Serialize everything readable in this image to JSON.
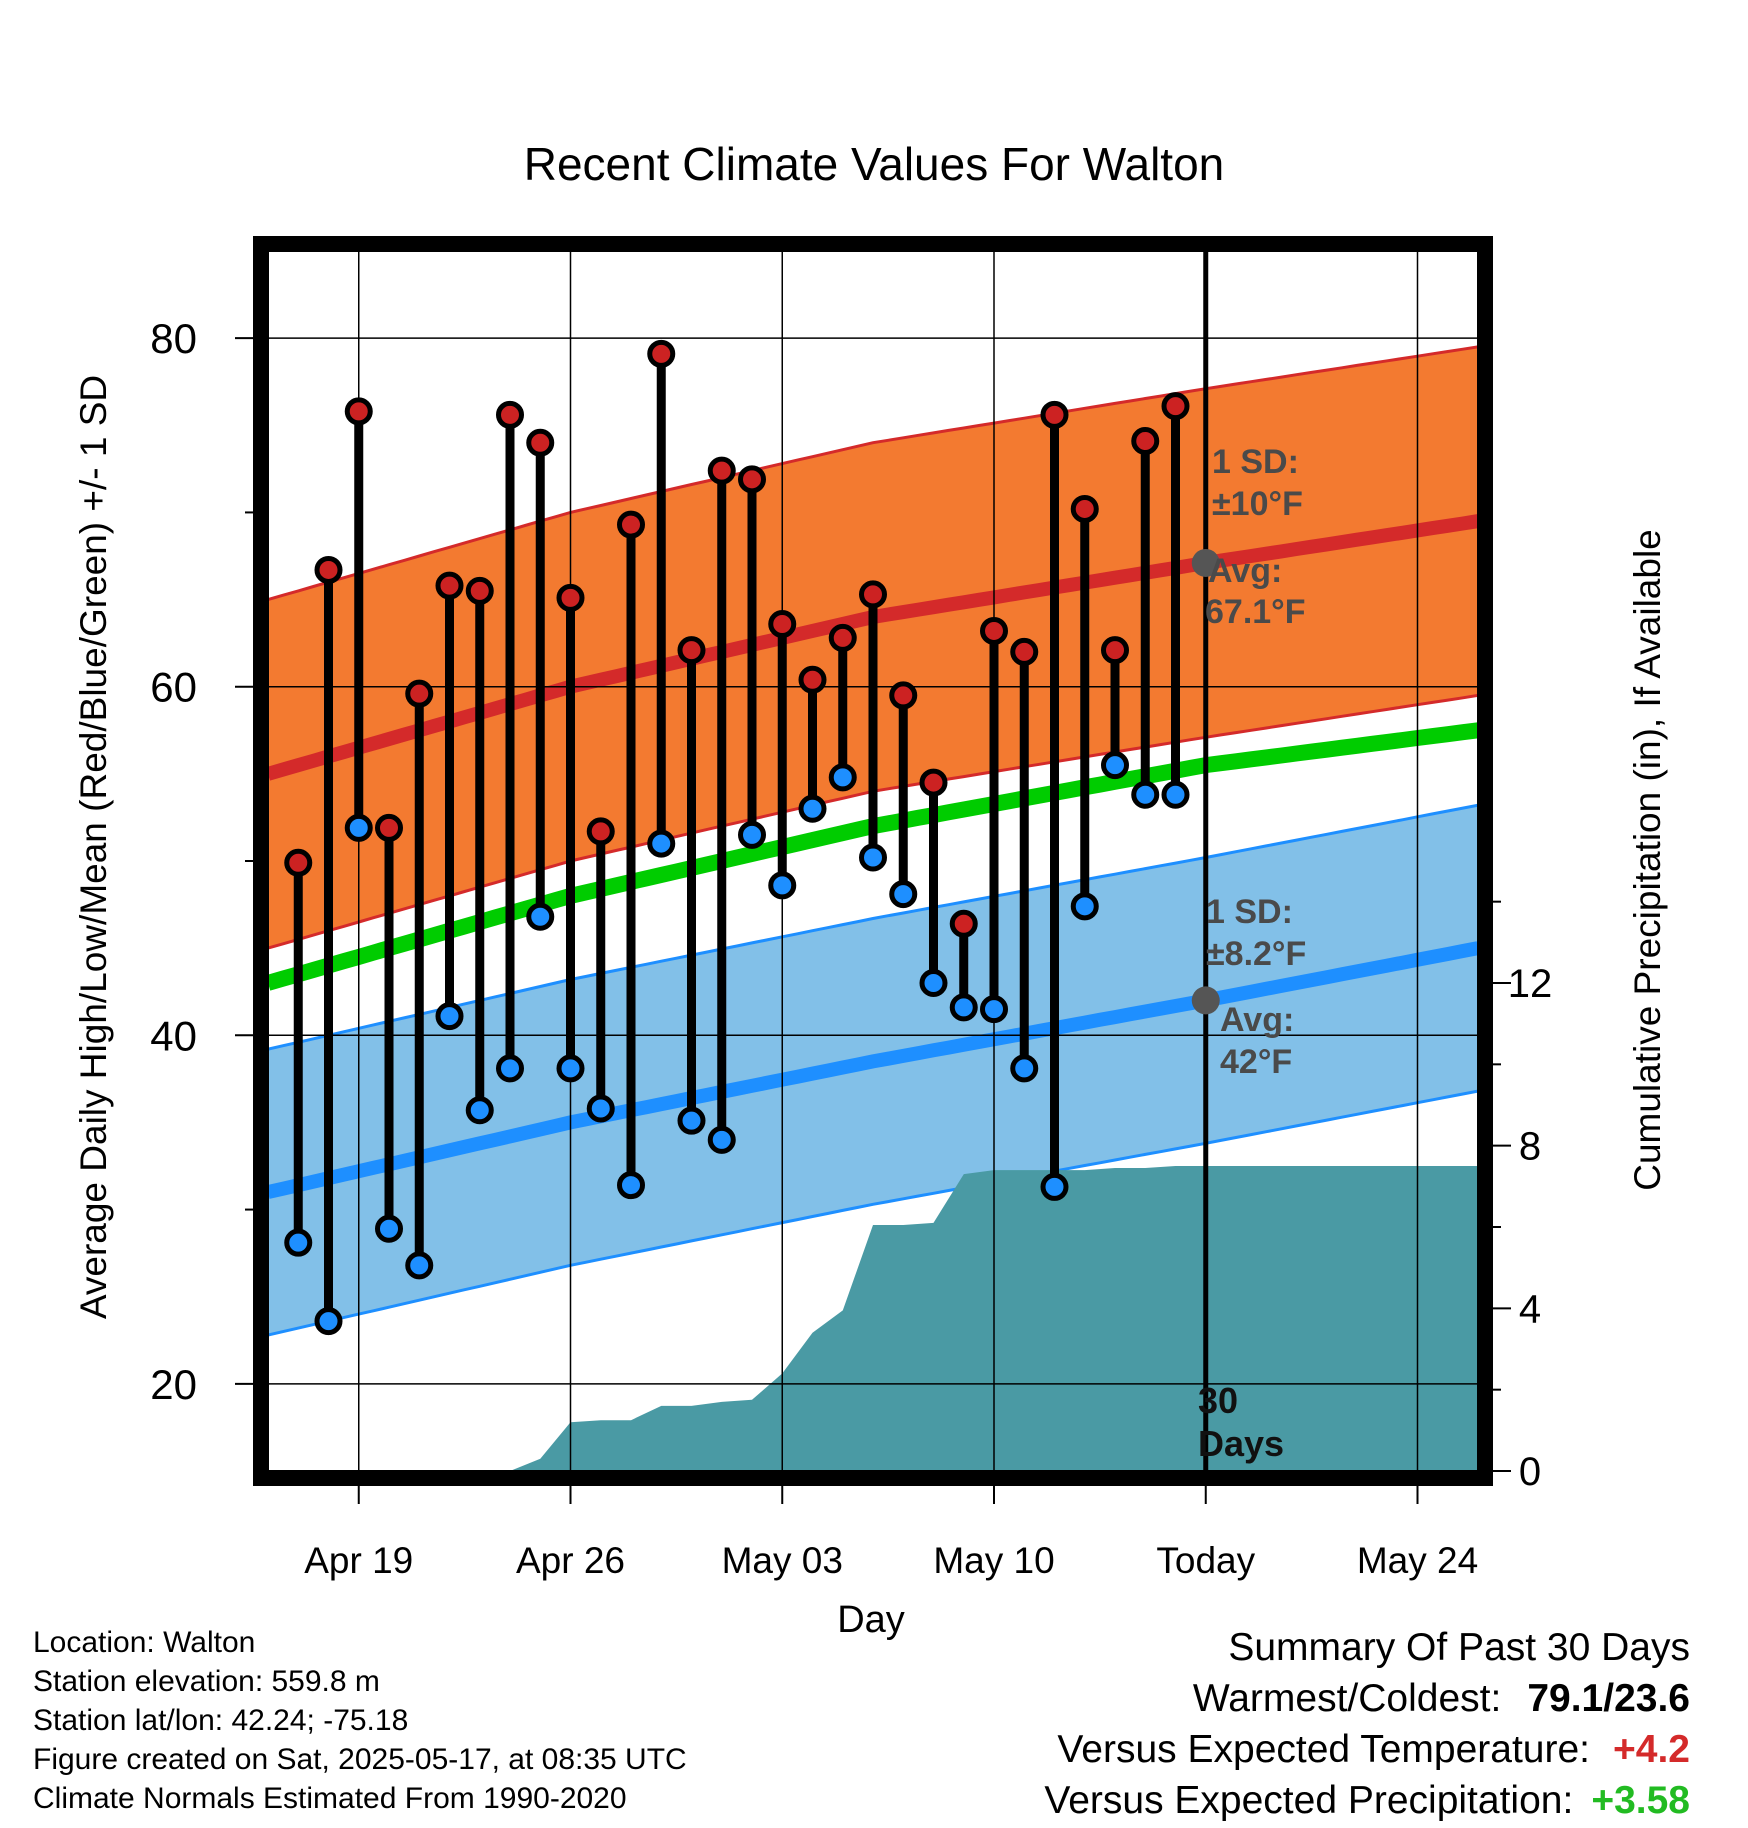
{
  "colors": {
    "high_band": "#f37a30",
    "high_line": "#d42a2a",
    "high_band_edge": "#d42a2a",
    "low_band": "#82c0e8",
    "low_line": "#1e8fff",
    "low_band_edge": "#1e8fff",
    "mean_line": "#00cc00",
    "precip_fill": "#4a9aa4",
    "high_marker": "#cc2222",
    "low_marker": "#1e8fff",
    "annotation_text": "#4a4a4a",
    "positive_temp": "#d42a2a",
    "positive_precip": "#22bb22"
  },
  "chart_data": {
    "type": "line",
    "title": "Recent Climate Values For Walton",
    "xlabel": "Day",
    "ylabel": "Average Daily High/Low/Mean (Red/Blue/Green) +/- 1 SD",
    "y2label": "Cumulative Precipitation (in), If Available",
    "ylim": [
      15,
      85
    ],
    "y2lim": [
      0,
      30
    ],
    "yticks": [
      20,
      40,
      60,
      80
    ],
    "y2ticks": [
      0,
      4,
      8,
      12
    ],
    "xlim": [
      16,
      56
    ],
    "grid": true,
    "xticks": [
      {
        "day": 19,
        "label": "Apr 19"
      },
      {
        "day": 26,
        "label": "Apr 26"
      },
      {
        "day": 33,
        "label": "May 03"
      },
      {
        "day": 40,
        "label": "May 10"
      },
      {
        "day": 47,
        "label": "Today"
      },
      {
        "day": 54,
        "label": "May 24"
      }
    ],
    "today_day": 47,
    "normals": {
      "days": [
        16,
        26,
        36,
        47,
        56
      ],
      "high_mean": [
        55,
        60,
        64,
        67.1,
        69.5
      ],
      "high_sd": 10,
      "low_mean": [
        31,
        35,
        38.5,
        42,
        45
      ],
      "low_sd": 8.2,
      "mean": [
        43,
        48,
        52,
        55.5,
        57.5
      ]
    },
    "series": [
      {
        "name": "High",
        "days": [
          17,
          18,
          19,
          20,
          21,
          22,
          23,
          24,
          25,
          26,
          27,
          28,
          29,
          30,
          31,
          32,
          33,
          34,
          35,
          36,
          37,
          38,
          39,
          40,
          41,
          42,
          43,
          44,
          45,
          46
        ],
        "values": [
          49.9,
          66.7,
          75.8,
          51.9,
          59.6,
          65.8,
          65.5,
          75.6,
          74.0,
          65.1,
          51.7,
          69.3,
          79.1,
          62.1,
          72.4,
          71.9,
          63.6,
          60.4,
          62.8,
          65.3,
          59.5,
          54.5,
          46.4,
          63.2,
          62.0,
          75.6,
          70.2,
          62.1,
          74.1,
          76.1
        ]
      },
      {
        "name": "Low",
        "days": [
          17,
          18,
          19,
          20,
          21,
          22,
          23,
          24,
          25,
          26,
          27,
          28,
          29,
          30,
          31,
          32,
          33,
          34,
          35,
          36,
          37,
          38,
          39,
          40,
          41,
          42,
          43,
          44,
          45,
          46
        ],
        "values": [
          28.1,
          23.6,
          51.9,
          28.9,
          26.8,
          41.1,
          35.7,
          38.1,
          46.8,
          38.1,
          35.8,
          31.4,
          51.0,
          35.1,
          34.0,
          51.5,
          48.6,
          53.0,
          54.8,
          50.2,
          48.1,
          43.0,
          41.6,
          41.5,
          38.1,
          31.3,
          47.4,
          55.5,
          53.8,
          53.8
        ]
      }
    ],
    "precipitation": {
      "days": [
        16,
        17,
        18,
        19,
        20,
        21,
        22,
        23,
        24,
        25,
        26,
        27,
        28,
        29,
        30,
        31,
        32,
        33,
        34,
        35,
        36,
        37,
        38,
        39,
        40,
        41,
        42,
        43,
        44,
        45,
        46,
        47,
        56
      ],
      "values": [
        0,
        0,
        0,
        0,
        0,
        0,
        0,
        0,
        0,
        0.3,
        1.2,
        1.25,
        1.25,
        1.6,
        1.6,
        1.7,
        1.75,
        2.4,
        3.4,
        3.95,
        6.05,
        6.05,
        6.1,
        7.3,
        7.4,
        7.4,
        7.4,
        7.4,
        7.45,
        7.45,
        7.5,
        7.5,
        7.5
      ]
    },
    "annotations": {
      "high_sd_line1": "1 SD:",
      "high_sd_line2": "±10°F",
      "high_avg_line1": "Avg:",
      "high_avg_line2": "67.1°F",
      "low_sd_line1": "1 SD:",
      "low_sd_line2": "±8.2°F",
      "low_avg_line1": "Avg:",
      "low_avg_line2": "42°F",
      "window_line1": "30",
      "window_line2": "Days"
    }
  },
  "footer": {
    "location": "Location: Walton",
    "elevation": "Station elevation: 559.8 m",
    "latlon": "Station lat/lon: 42.24; -75.18",
    "created": "Figure created on Sat, 2025-05-17, at 08:35 UTC",
    "normals": "Climate Normals Estimated From 1990-2020"
  },
  "summary": {
    "heading": "Summary Of Past 30 Days",
    "warmest_coldest_label": "Warmest/Coldest:",
    "warmest_coldest_value": "79.1/23.6",
    "temp_label": "Versus Expected Temperature:",
    "temp_value": "+4.2",
    "precip_label": "Versus Expected Precipitation:",
    "precip_value": "+3.58"
  }
}
